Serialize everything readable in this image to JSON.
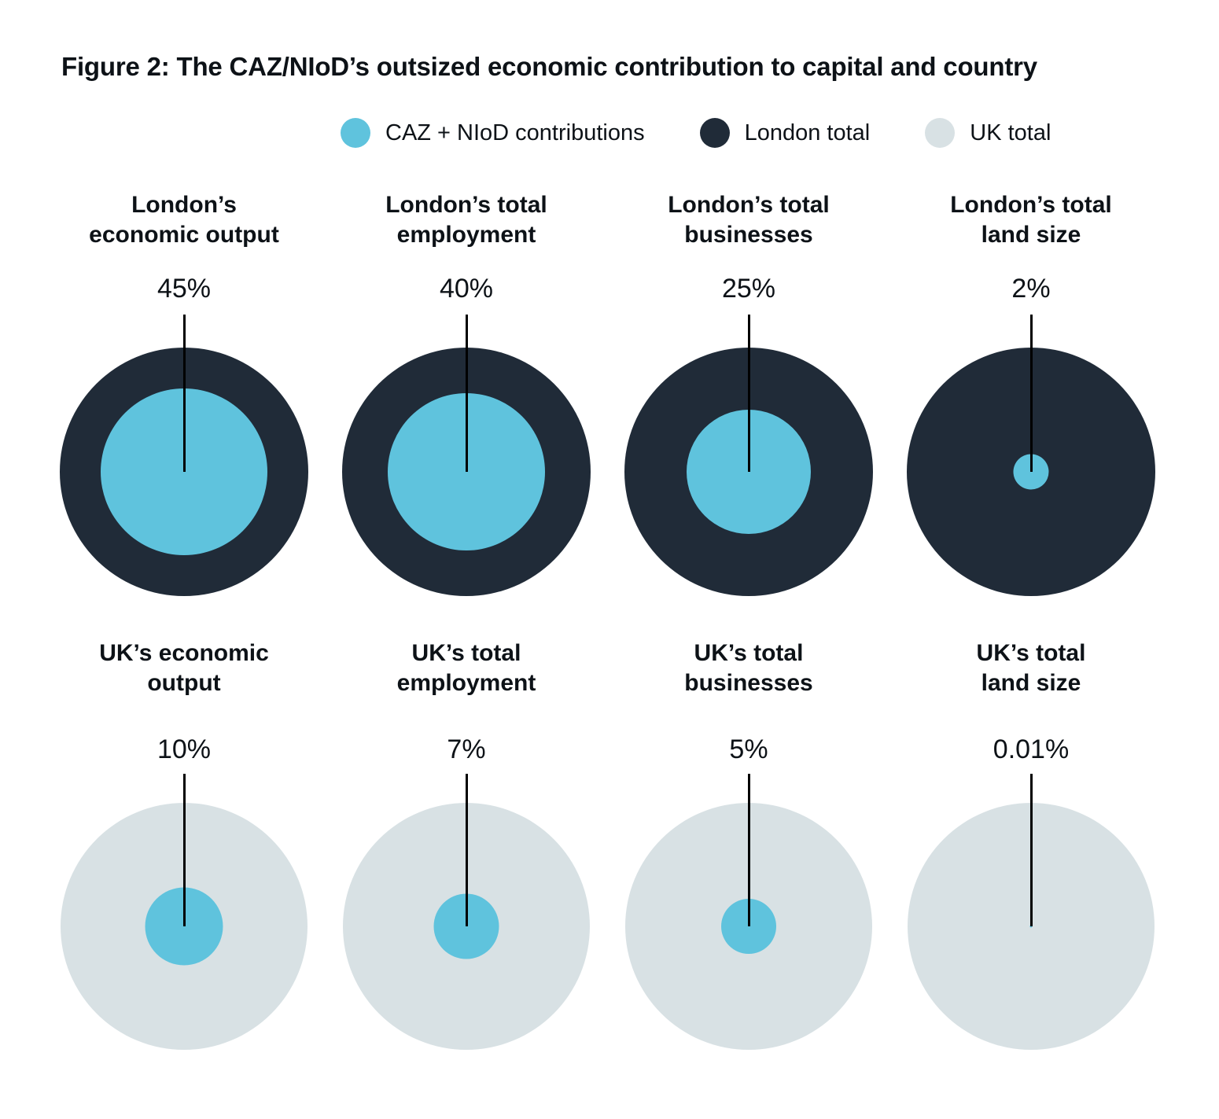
{
  "title": "Figure 2: The CAZ/NIoD’s outsized economic contribution to capital and country",
  "colors": {
    "caz_blue": "#5fc3dd",
    "london_dark": "#202b38",
    "uk_gray": "#d8e1e4",
    "text": "#0d1217",
    "leader_line": "#000000"
  },
  "legend": [
    {
      "label": "CAZ + NIoD contributions",
      "color": "#5fc3dd"
    },
    {
      "label": "London total",
      "color": "#202b38"
    },
    {
      "label": "UK total",
      "color": "#d8e1e4"
    }
  ],
  "chart_data": {
    "type": "pie",
    "subtype": "nested-proportional-circles",
    "series_name": "CAZ + NIoD contributions",
    "encoding": "inner blue circle area = stated percentage of outer circle area",
    "inner_color": "#5fc3dd",
    "rows": [
      {
        "group": "London total",
        "outer_color": "#202b38",
        "items": [
          {
            "label": "London’s\neconomic output",
            "value_pct": 45,
            "value_label": "45%"
          },
          {
            "label": "London’s total\nemployment",
            "value_pct": 40,
            "value_label": "40%"
          },
          {
            "label": "London’s total\nbusinesses",
            "value_pct": 25,
            "value_label": "25%"
          },
          {
            "label": "London’s total\nland size",
            "value_pct": 2,
            "value_label": "2%"
          }
        ]
      },
      {
        "group": "UK total",
        "outer_color": "#d8e1e4",
        "items": [
          {
            "label": "UK’s economic\noutput",
            "value_pct": 10,
            "value_label": "10%"
          },
          {
            "label": "UK’s total\nemployment",
            "value_pct": 7,
            "value_label": "7%"
          },
          {
            "label": "UK’s total\nbusinesses",
            "value_pct": 5,
            "value_label": "5%"
          },
          {
            "label": "UK’s total\nland size",
            "value_pct": 0.01,
            "value_label": "0.01%"
          }
        ]
      }
    ]
  }
}
